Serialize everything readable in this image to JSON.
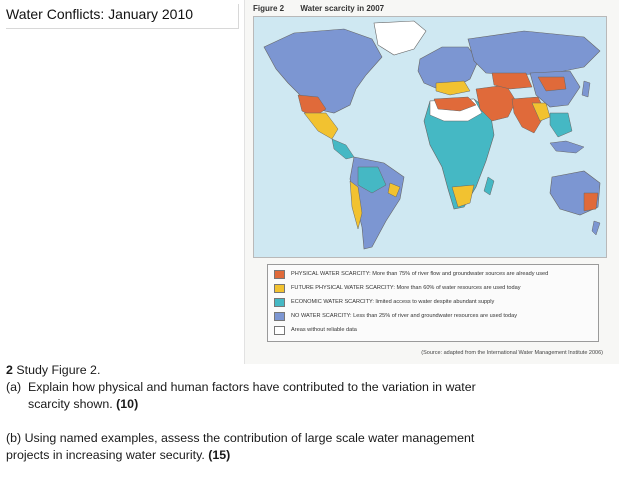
{
  "slide": {
    "title": "Water Conflicts: January 2010"
  },
  "figure": {
    "number": "Figure 2",
    "title": "Water scarcity in 2007",
    "legend": [
      {
        "color": "#e06a3a",
        "label": "PHYSICAL WATER SCARCITY: More than 75% of river flow and groundwater sources are already used"
      },
      {
        "color": "#f2c230",
        "label": "FUTURE PHYSICAL WATER SCARCITY: More than 60% of water resources are used today"
      },
      {
        "color": "#45b8c4",
        "label": "ECONOMIC WATER SCARCITY: limited access to water despite abundant supply"
      },
      {
        "color": "#7c96d2",
        "label": "NO WATER SCARCITY: Less than 25% of river and groundwater resources are used today"
      },
      {
        "color": "#ffffff",
        "label": "Areas without reliable data"
      }
    ],
    "source": "(Source: adapted from the International Water Management Institute 2006)"
  },
  "question": {
    "number": "2",
    "intro": "Study Figure 2.",
    "part_a_label": "(a)",
    "part_a_text_1": "Explain how physical and human factors have contributed to the variation in water",
    "part_a_text_2": "scarcity shown.",
    "part_a_marks": "(10)",
    "part_b_text_1": "(b) Using named examples, assess the contribution of large scale water management",
    "part_b_text_2": "projects in increasing water security.",
    "part_b_marks": "(15)"
  }
}
